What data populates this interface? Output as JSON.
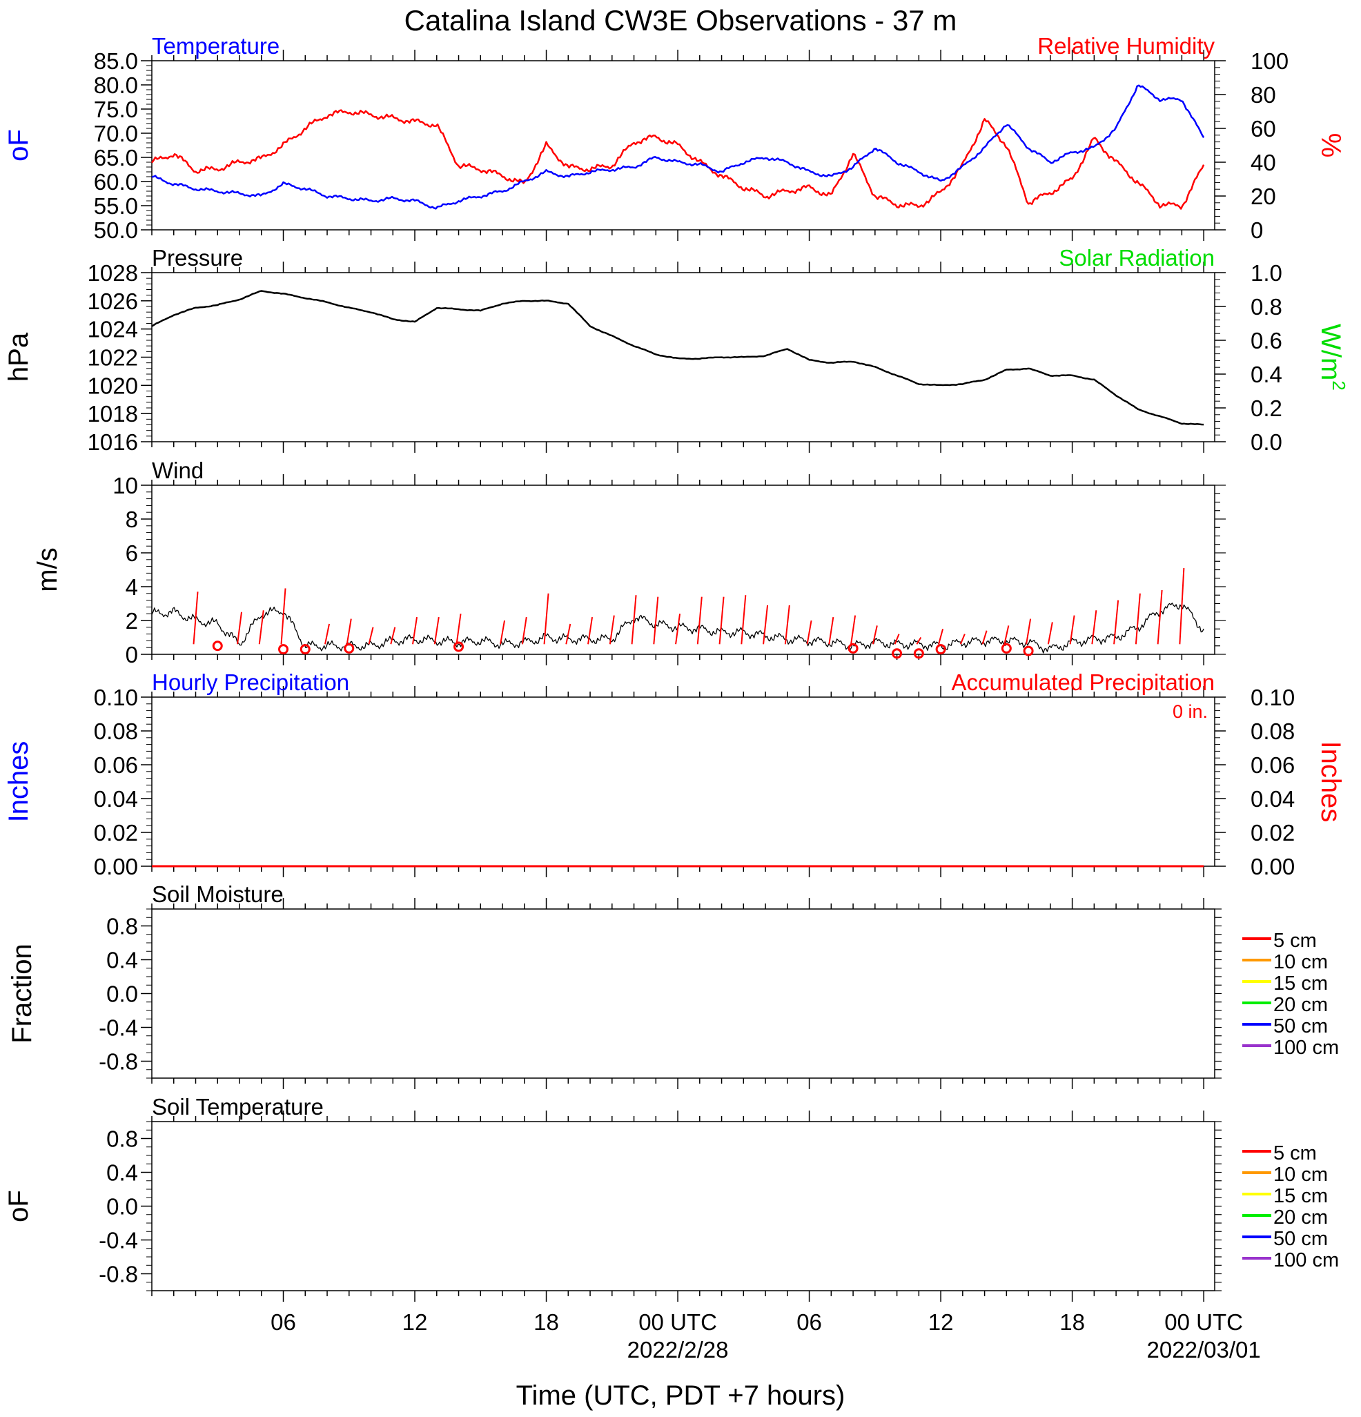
{
  "title": "Catalina Island CW3E Observations - 37 m",
  "x_axis": {
    "label": "Time (UTC, PDT +7 hours)",
    "tick_labels": [
      "06",
      "12",
      "18",
      "00 UTC",
      "06",
      "12",
      "18",
      "00 UTC"
    ],
    "date_labels": [
      "2022/2/28",
      "2022/03/01"
    ]
  },
  "colors": {
    "temperature": "#0000ff",
    "humidity": "#ff0000",
    "pressure": "#000000",
    "solar": "#00dd00",
    "wind_speed": "#000000",
    "gust": "#ff0000",
    "soil_5": "#ff0000",
    "soil_10": "#ff9900",
    "soil_15": "#ffff00",
    "soil_20": "#00ee00",
    "soil_50": "#0000ff",
    "soil_100": "#9933cc"
  },
  "chart_data": [
    {
      "type": "line",
      "panel": "temperature-humidity",
      "left_title": "Temperature",
      "right_title": "Relative Humidity",
      "left_unit": "oF",
      "right_unit": "%",
      "ylim_left": [
        50,
        85
      ],
      "ylim_right": [
        0,
        100
      ],
      "yticks_left": [
        "85.0",
        "80.0",
        "75.0",
        "70.0",
        "65.0",
        "60.0",
        "55.0",
        "50.0"
      ],
      "yticks_right": [
        "100",
        "80",
        "60",
        "40",
        "20",
        "0"
      ],
      "x_hours": [
        0,
        1,
        2,
        3,
        4,
        5,
        6,
        7,
        8,
        9,
        10,
        11,
        12,
        13,
        14,
        15,
        16,
        17,
        18,
        19,
        20,
        21,
        22,
        23,
        24,
        25,
        26,
        27,
        28,
        29,
        30,
        31,
        32,
        33,
        34,
        35,
        36,
        37,
        38,
        39,
        40,
        41,
        42,
        43,
        44,
        45,
        46,
        47,
        48
      ],
      "series": [
        {
          "name": "Temperature",
          "axis": "left",
          "values": [
            61,
            59.5,
            58.5,
            58,
            57.5,
            57,
            59.5,
            58.5,
            57,
            56.5,
            56,
            56.5,
            56,
            54.5,
            56,
            57,
            58,
            60,
            62,
            61,
            62,
            62.5,
            63,
            65,
            64,
            63.5,
            62,
            64,
            65,
            64,
            62,
            61,
            63,
            67,
            64,
            62,
            60,
            63,
            67,
            72,
            67,
            64,
            66,
            67,
            71,
            80,
            77,
            77,
            69
          ]
        },
        {
          "name": "Relative Humidity",
          "axis": "right",
          "values": [
            40,
            45,
            35,
            36,
            40,
            42,
            50,
            60,
            68,
            70,
            68,
            66,
            64,
            62,
            38,
            36,
            32,
            27,
            50,
            37,
            36,
            38,
            52,
            55,
            50,
            40,
            32,
            25,
            20,
            23,
            25,
            20,
            45,
            20,
            15,
            14,
            22,
            38,
            65,
            50,
            16,
            22,
            30,
            54,
            40,
            28,
            15,
            14,
            38
          ]
        }
      ]
    },
    {
      "type": "line",
      "panel": "pressure",
      "left_title": "Pressure",
      "right_title": "Solar Radiation",
      "left_unit": "hPa",
      "right_unit": "W/m",
      "right_unit_sup": "2",
      "ylim_left": [
        1016,
        1028
      ],
      "ylim_right": [
        0,
        1
      ],
      "yticks_left": [
        "1028",
        "1026",
        "1024",
        "1022",
        "1020",
        "1018",
        "1016"
      ],
      "yticks_right": [
        "1.0",
        "0.8",
        "0.6",
        "0.4",
        "0.2",
        "0.0"
      ],
      "x_hours": [
        0,
        1,
        2,
        3,
        4,
        5,
        6,
        7,
        8,
        9,
        10,
        11,
        12,
        13,
        14,
        15,
        16,
        17,
        18,
        19,
        20,
        21,
        22,
        23,
        24,
        25,
        26,
        27,
        28,
        29,
        30,
        31,
        32,
        33,
        34,
        35,
        36,
        37,
        38,
        39,
        40,
        41,
        42,
        43,
        44,
        45,
        46,
        47,
        48
      ],
      "series": [
        {
          "name": "Pressure",
          "axis": "left",
          "values": [
            1024.2,
            1025,
            1025.5,
            1025.7,
            1026.1,
            1026.7,
            1026.5,
            1026.2,
            1025.9,
            1025.5,
            1025.2,
            1024.7,
            1024.5,
            1025.5,
            1025.4,
            1025.3,
            1025.8,
            1026,
            1026,
            1025.8,
            1024.2,
            1023.5,
            1022.8,
            1022.2,
            1021.9,
            1021.9,
            1022,
            1022,
            1022.1,
            1022.6,
            1021.8,
            1021.6,
            1021.7,
            1021.3,
            1020.7,
            1020.1,
            1020,
            1020.1,
            1020.4,
            1021.1,
            1021.2,
            1020.7,
            1020.7,
            1020.4,
            1019.3,
            1018.3,
            1017.8,
            1017.3,
            1017.2
          ]
        }
      ]
    },
    {
      "type": "line",
      "panel": "wind",
      "left_title": "Wind",
      "left_unit": "m/s",
      "ylim_left": [
        0,
        10
      ],
      "yticks_left": [
        "10",
        "8",
        "6",
        "4",
        "2",
        "0"
      ],
      "x_hours": [
        0,
        1,
        2,
        3,
        4,
        5,
        6,
        7,
        8,
        9,
        10,
        11,
        12,
        13,
        14,
        15,
        16,
        17,
        18,
        19,
        20,
        21,
        22,
        23,
        24,
        25,
        26,
        27,
        28,
        29,
        30,
        31,
        32,
        33,
        34,
        35,
        36,
        37,
        38,
        39,
        40,
        41,
        42,
        43,
        44,
        45,
        46,
        47,
        48
      ],
      "series": [
        {
          "name": "Wind Speed",
          "axis": "left",
          "values": [
            2.4,
            2.5,
            2,
            1.8,
            0.6,
            2.4,
            2.6,
            0.5,
            0.5,
            0.5,
            0.5,
            0.8,
            0.9,
            0.8,
            0.7,
            0.8,
            0.6,
            0.7,
            1,
            0.9,
            0.9,
            0.9,
            2.2,
            1.8,
            1.6,
            1.5,
            1.3,
            1.3,
            1.1,
            0.9,
            0.8,
            0.7,
            0.5,
            0.7,
            0.6,
            0.6,
            0.5,
            0.7,
            0.8,
            0.8,
            0.7,
            0.3,
            0.7,
            0.9,
            1,
            1.6,
            2.6,
            3,
            1.4
          ]
        }
      ],
      "gust_hours": [
        2,
        4,
        5,
        6,
        8,
        9,
        10,
        11,
        12,
        13,
        14,
        16,
        17,
        18,
        19,
        20,
        21,
        22,
        23,
        24,
        25,
        26,
        27,
        28,
        29,
        30,
        31,
        32,
        33,
        34,
        35,
        36,
        37,
        38,
        39,
        40,
        41,
        42,
        43,
        44,
        45,
        46,
        47
      ],
      "gust_values": [
        3.7,
        2.5,
        2.6,
        3.9,
        1.8,
        2.1,
        1.6,
        1.6,
        2.2,
        2.2,
        2.4,
        2,
        2.2,
        3.6,
        1.8,
        2.2,
        2.3,
        3.5,
        3.4,
        2.4,
        3.4,
        3.4,
        3.5,
        2.9,
        2.9,
        2,
        2.2,
        2.3,
        1.7,
        1.2,
        1,
        1.5,
        1.2,
        1.4,
        1.7,
        2.1,
        1.9,
        2.3,
        2.6,
        3.2,
        3.6,
        3.8,
        5.1
      ],
      "direction_hours": [
        3,
        6,
        7,
        9,
        14,
        32,
        34,
        35,
        36,
        39,
        40
      ],
      "direction_values": [
        0.5,
        0.3,
        0.3,
        0.35,
        0.45,
        0.35,
        0.05,
        0.05,
        0.3,
        0.35,
        0.2
      ]
    },
    {
      "type": "line",
      "panel": "precipitation",
      "left_title": "Hourly Precipitation",
      "right_title": "Accumulated Precipitation",
      "total_label": "0 in.",
      "left_unit": "Inches",
      "right_unit": "Inches",
      "ylim_left": [
        0,
        0.1
      ],
      "ylim_right": [
        0,
        0.1
      ],
      "yticks_left": [
        "0.10",
        "0.08",
        "0.06",
        "0.04",
        "0.02",
        "0.00"
      ],
      "yticks_right": [
        "0.10",
        "0.08",
        "0.06",
        "0.04",
        "0.02",
        "0.00"
      ],
      "x_hours": [
        0,
        48
      ],
      "series": [
        {
          "name": "Hourly Precipitation",
          "axis": "left",
          "values": [
            0,
            0
          ]
        },
        {
          "name": "Accumulated Precipitation",
          "axis": "right",
          "values": [
            0,
            0
          ]
        }
      ]
    },
    {
      "type": "line",
      "panel": "soil-moisture",
      "left_title": "Soil Moisture",
      "left_unit": "Fraction",
      "ylim_left": [
        -1,
        1
      ],
      "yticks_left": [
        "0.8",
        "0.4",
        "0.0",
        "-0.4",
        "-0.8"
      ],
      "legend": [
        "5 cm",
        "10 cm",
        "15 cm",
        "20 cm",
        "50 cm",
        "100 cm"
      ],
      "series": []
    },
    {
      "type": "line",
      "panel": "soil-temperature",
      "left_title": "Soil Temperature",
      "left_unit": "oF",
      "ylim_left": [
        -1,
        1
      ],
      "yticks_left": [
        "0.8",
        "0.4",
        "0.0",
        "-0.4",
        "-0.8"
      ],
      "legend": [
        "5 cm",
        "10 cm",
        "15 cm",
        "20 cm",
        "50 cm",
        "100 cm"
      ],
      "series": []
    }
  ]
}
